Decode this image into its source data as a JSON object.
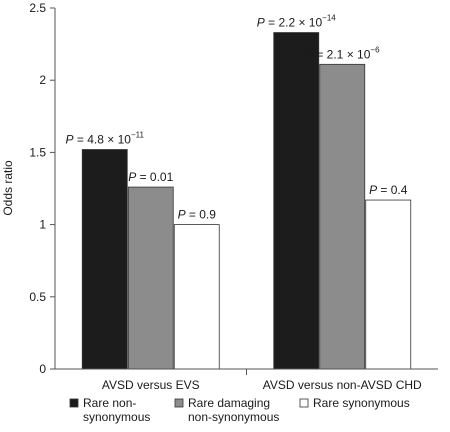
{
  "chart_data": {
    "type": "bar",
    "title": "",
    "xlabel": "",
    "ylabel": "Odds ratio",
    "ylim": [
      0,
      2.5
    ],
    "yticks": [
      "0",
      "0.5",
      "1",
      "1.5",
      "2",
      "2.5"
    ],
    "ytick_values": [
      0,
      0.5,
      1,
      1.5,
      2,
      2.5
    ],
    "grid": false,
    "legend_position": "bottom",
    "categories": [
      "AVSD versus EVS",
      "AVSD versus non-AVSD CHD"
    ],
    "series": [
      {
        "name": "Rare non-synonymous",
        "legend_lines": [
          "Rare non-",
          "synonymous"
        ],
        "color": "#1c1c1c",
        "values": [
          1.52,
          2.33
        ],
        "annotations": [
          {
            "prefix": "P = 4.8 × 10",
            "exp": "−11"
          },
          {
            "prefix": "P = 2.2 × 10",
            "exp": "−14"
          }
        ]
      },
      {
        "name": "Rare damaging non-synonymous",
        "legend_lines": [
          "Rare damaging",
          "non-synonymous"
        ],
        "color": "#8c8c8c",
        "values": [
          1.26,
          2.11
        ],
        "annotations": [
          {
            "prefix": "P = 0.01",
            "exp": ""
          },
          {
            "prefix": "P = 2.1 × 10",
            "exp": "−6"
          }
        ]
      },
      {
        "name": "Rare synonymous",
        "legend_lines": [
          "Rare synonymous"
        ],
        "color": "#ffffff",
        "values": [
          1.0,
          1.17
        ],
        "annotations": [
          {
            "prefix": "P = 0.9",
            "exp": ""
          },
          {
            "prefix": "P = 0.4",
            "exp": ""
          }
        ]
      }
    ]
  }
}
